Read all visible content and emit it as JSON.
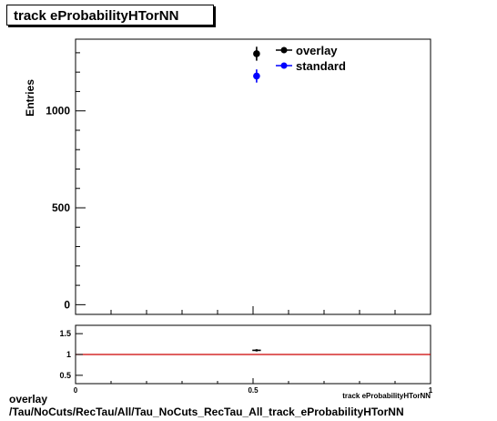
{
  "title": "track eProbabilityHTorNN",
  "footer": {
    "line1": "overlay",
    "line2": "/Tau/NoCuts/RecTau/All/Tau_NoCuts_RecTau_All_track_eProbabilityHTorNN"
  },
  "colors": {
    "overlay": "#000000",
    "standard": "#0000ff",
    "ratio_line": "#cc0000"
  },
  "chart_data": [
    {
      "type": "scatter",
      "ylabel": "Entries",
      "xlim": [
        0,
        1
      ],
      "ylim": [
        -50,
        1370
      ],
      "yticks": [
        0,
        500,
        1000
      ],
      "ytick_labels": [
        "0",
        "500",
        "1000"
      ],
      "legend": {
        "position": "top-right",
        "entries": [
          "overlay",
          "standard"
        ]
      },
      "series": [
        {
          "name": "overlay",
          "color": "#000000",
          "points": [
            {
              "x": 0.51,
              "y": 1295,
              "yerr": 36
            }
          ]
        },
        {
          "name": "standard",
          "color": "#0000ff",
          "points": [
            {
              "x": 0.51,
              "y": 1180,
              "yerr": 34
            }
          ]
        }
      ]
    },
    {
      "type": "scatter",
      "xlabel": "track eProbabilityHTorNN",
      "xlim": [
        0,
        1
      ],
      "ylim": [
        0.3,
        1.7
      ],
      "yticks": [
        0.5,
        1,
        1.5
      ],
      "ytick_labels": [
        "0.5",
        "1",
        "1.5"
      ],
      "xticks": [
        0,
        0.5,
        1
      ],
      "xtick_labels": [
        "0",
        "0.5",
        "1"
      ],
      "reference_line": 1,
      "series": [
        {
          "name": "ratio",
          "color": "#000000",
          "points": [
            {
              "x": 0.51,
              "y": 1.1,
              "xerr": 0.012,
              "yerr": 0.02
            }
          ]
        }
      ]
    }
  ]
}
